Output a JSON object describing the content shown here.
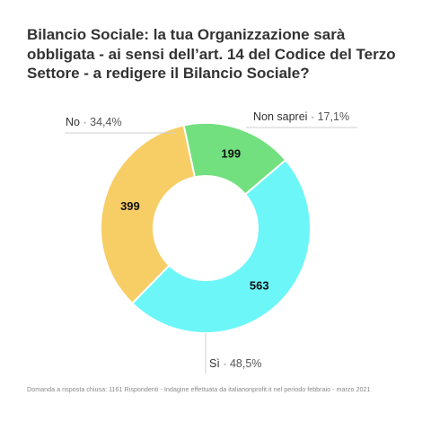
{
  "title": "Bilancio Sociale: la tua Organizzazione sarà obbligata - ai sensi dell’art. 14 del Codice del Terzo Settore - a redigere il Bilancio Sociale?",
  "footnote": "Domanda a risposta chiusa: 1161 Rispondenti - Indagine effettuata da italianonprofit.it nel periodo febbraio - marzo 2021",
  "chart_data": {
    "type": "pie",
    "donut": true,
    "title": "Bilancio Sociale: la tua Organizzazione sarà obbligata - ai sensi dell’art. 14 del Codice del Terzo Settore - a redigere il Bilancio Sociale?",
    "slices": [
      {
        "label": "Non saprei",
        "value": 199,
        "percent": "17,1%",
        "color": "#72e07e"
      },
      {
        "label": "Sì",
        "value": 563,
        "percent": "48,5%",
        "color": "#6cf6f8"
      },
      {
        "label": "No",
        "value": 399,
        "percent": "34,4%",
        "color": "#f7cd66"
      }
    ],
    "separator": "•"
  }
}
